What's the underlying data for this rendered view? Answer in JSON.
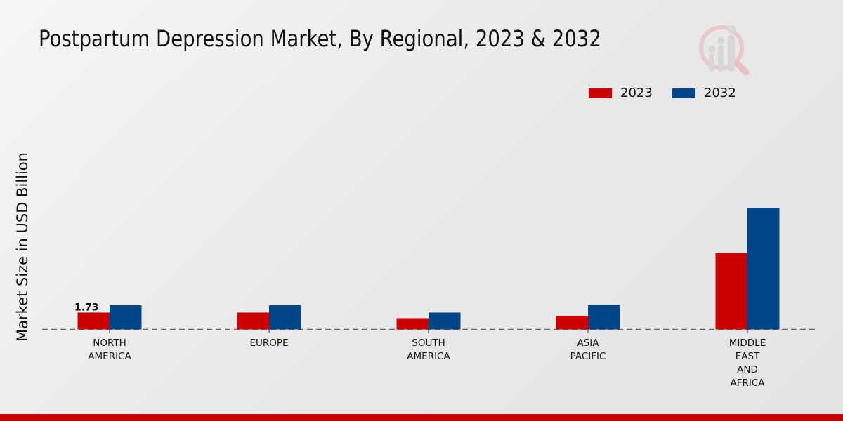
{
  "chart_data": {
    "type": "bar",
    "title": "Postpartum Depression Market, By Regional, 2023 & 2032",
    "xlabel": "",
    "ylabel": "Market Size in USD Billion",
    "categories": [
      [
        "NORTH",
        "AMERICA"
      ],
      [
        "EUROPE"
      ],
      [
        "SOUTH",
        "AMERICA"
      ],
      [
        "ASIA",
        "PACIFIC"
      ],
      [
        "MIDDLE",
        "EAST",
        "AND",
        "AFRICA"
      ]
    ],
    "series": [
      {
        "name": "2023",
        "color": "#cc0000",
        "values": [
          1.73,
          1.73,
          1.15,
          1.4,
          7.84
        ]
      },
      {
        "name": "2032",
        "color": "#004687",
        "values": [
          2.48,
          2.48,
          1.73,
          2.55,
          12.48
        ]
      }
    ],
    "data_labels": [
      {
        "series": 0,
        "index": 0,
        "text": "1.73"
      }
    ],
    "ylim": [
      0,
      15
    ],
    "grid": false,
    "legend_position": "top-right"
  }
}
